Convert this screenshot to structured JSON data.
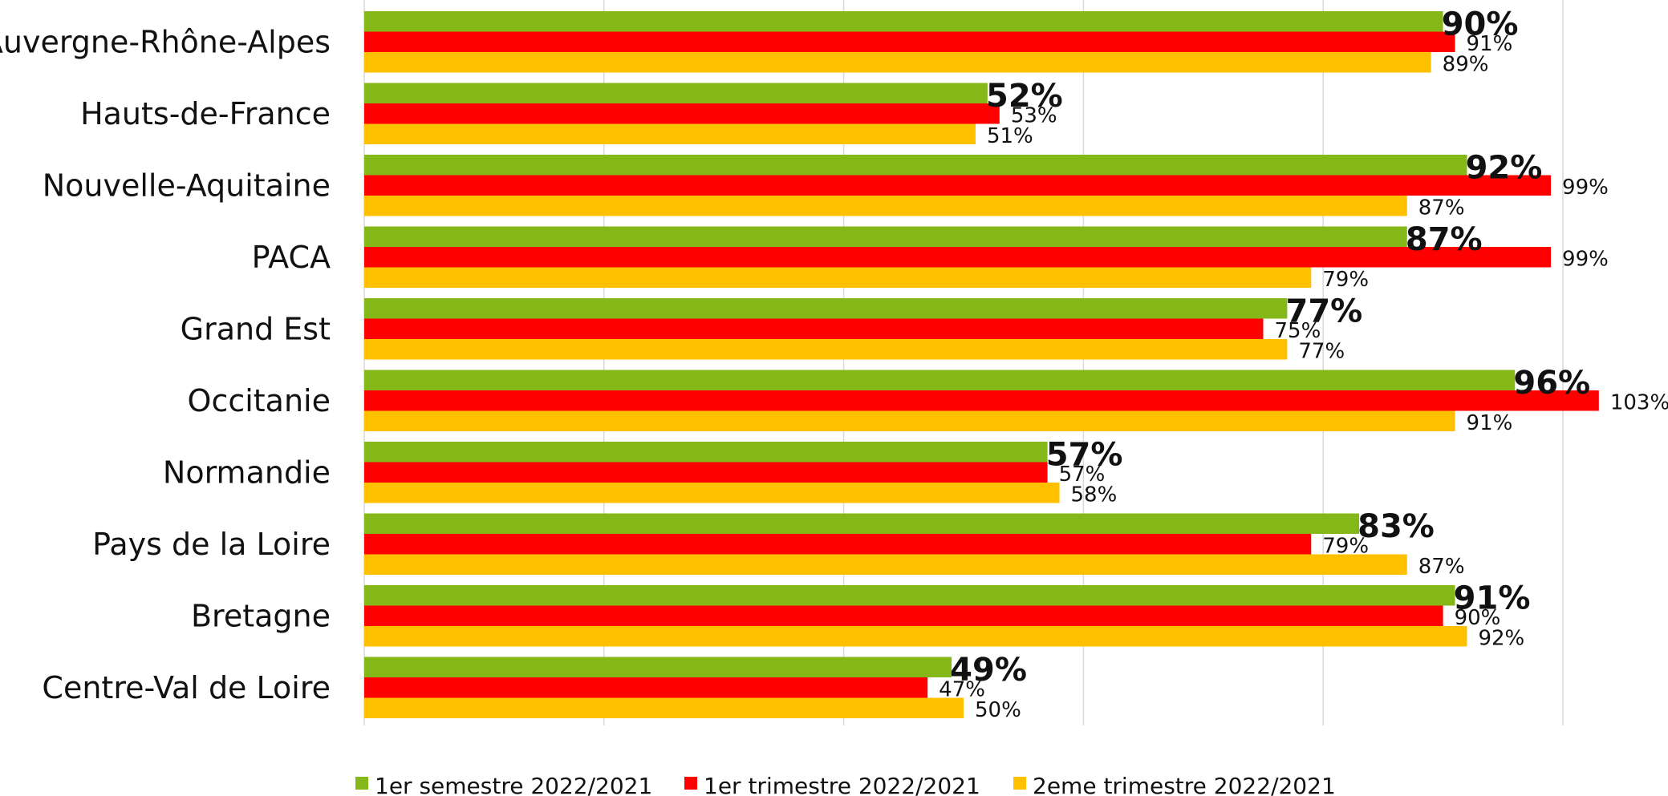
{
  "chart_data": {
    "type": "bar",
    "orientation": "horizontal",
    "categories": [
      "Auvergne-Rhône-Alpes",
      "Hauts-de-France",
      "Nouvelle-Aquitaine",
      "PACA",
      "Grand Est",
      "Occitanie",
      "Normandie",
      "Pays de la Loire",
      "Bretagne",
      "Centre-Val de Loire"
    ],
    "series": [
      {
        "name": "1er semestre 2022/2021",
        "color": "#84B819",
        "values": [
          90,
          52,
          92,
          87,
          77,
          96,
          57,
          83,
          91,
          49
        ],
        "labels": [
          "90%",
          "52%",
          "92%",
          "87%",
          "77%",
          "96%",
          "57%",
          "83%",
          "91%",
          "49%"
        ]
      },
      {
        "name": "1er trimestre 2022/2021",
        "color": "#FF0000",
        "values": [
          91,
          53,
          99,
          99,
          75,
          103,
          57,
          79,
          90,
          47
        ],
        "labels": [
          "91%",
          "53%",
          "99%",
          "99%",
          "75%",
          "103%",
          "57%",
          "79%",
          "90%",
          "47%"
        ]
      },
      {
        "name": "2eme trimestre 2022/2021",
        "color": "#FFC000",
        "values": [
          89,
          51,
          87,
          79,
          77,
          91,
          58,
          87,
          92,
          50
        ],
        "labels": [
          "89%",
          "51%",
          "87%",
          "79%",
          "77%",
          "91%",
          "58%",
          "87%",
          "92%",
          "50%"
        ]
      }
    ],
    "xlim": [
      0,
      100
    ],
    "grid": true,
    "legend_position": "bottom",
    "gridline_color": "#D9D9D9"
  }
}
